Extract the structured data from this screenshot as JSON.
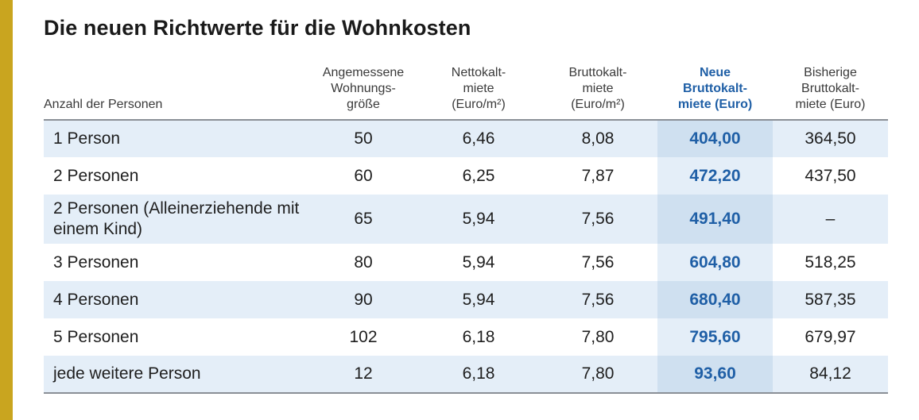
{
  "title": "Die neuen Richtwerte für die Wohnkosten",
  "colors": {
    "accent_bar": "#c9a51f",
    "highlight_text": "#1f5fa6",
    "row_shade": "#e4eef8",
    "highlight_shade": "#cfe0f0"
  },
  "table": {
    "headers": [
      [
        "Anzahl der Personen"
      ],
      [
        "Angemessene",
        "Wohnungs-",
        "größe"
      ],
      [
        "Nettokalt-",
        "miete",
        "(Euro/m²)"
      ],
      [
        "Bruttokalt-",
        "miete",
        "(Euro/m²)"
      ],
      [
        "Neue",
        "Bruttokalt-",
        "miete (Euro)"
      ],
      [
        "Bisherige",
        "Bruttokalt-",
        "miete (Euro)"
      ]
    ],
    "rows": [
      [
        "1 Person",
        "50",
        "6,46",
        "8,08",
        "404,00",
        "364,50"
      ],
      [
        "2 Personen",
        "60",
        "6,25",
        "7,87",
        "472,20",
        "437,50"
      ],
      [
        "2 Personen (Alleinerziehende mit einem Kind)",
        "65",
        "5,94",
        "7,56",
        "491,40",
        "–"
      ],
      [
        "3 Personen",
        "80",
        "5,94",
        "7,56",
        "604,80",
        "518,25"
      ],
      [
        "4 Personen",
        "90",
        "5,94",
        "7,56",
        "680,40",
        "587,35"
      ],
      [
        "5 Personen",
        "102",
        "6,18",
        "7,80",
        "795,60",
        "679,97"
      ],
      [
        "jede weitere Person",
        "12",
        "6,18",
        "7,80",
        "93,60",
        "84,12"
      ]
    ]
  }
}
